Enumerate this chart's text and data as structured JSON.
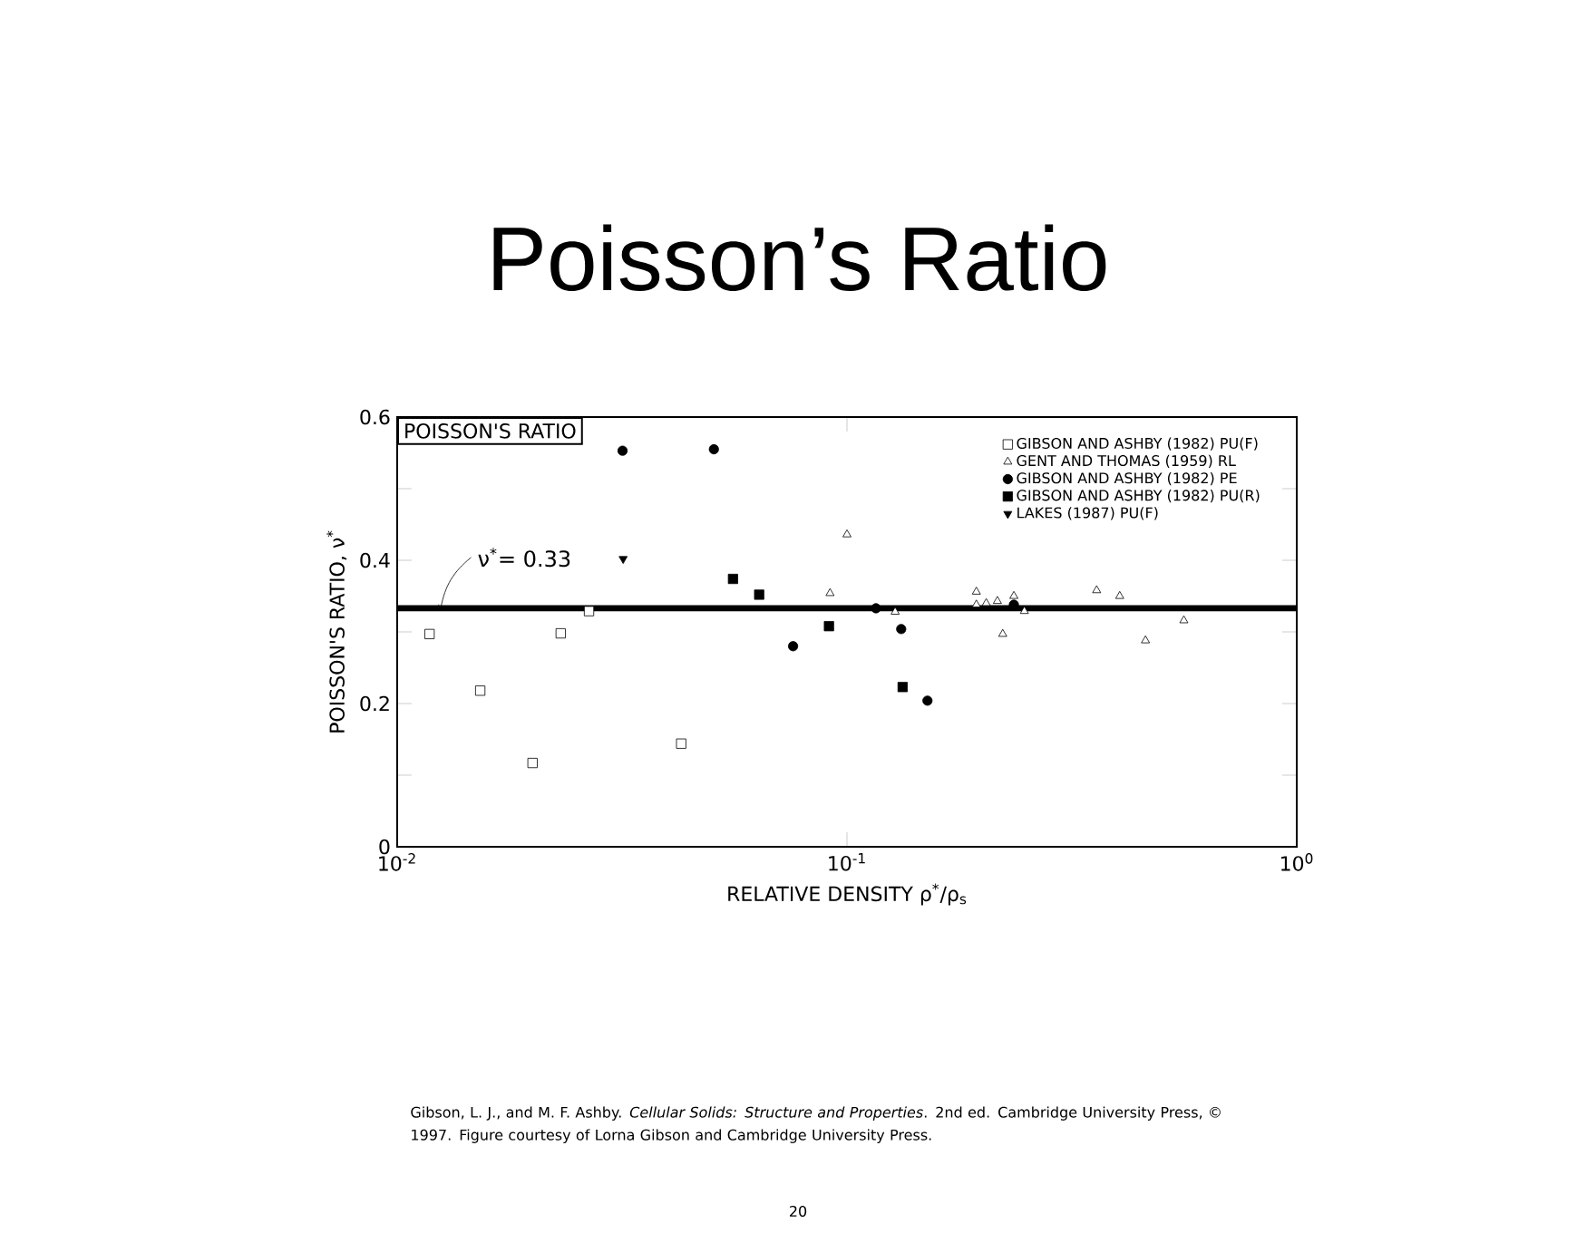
{
  "chart_data": {
    "type": "scatter",
    "title": "Poisson’s Ratio",
    "xlabel": "RELATIVE DENSITY ρ$^{*}$/ρ$_{s}$",
    "ylabel": "POISSON'S RATIO, ν$^{*}$",
    "log": "x",
    "xlim": [
      0.01,
      1
    ],
    "ylim": [
      0,
      0.6
    ],
    "xticks": [
      {
        "value": 0.01,
        "label": "10$^{-2}$"
      },
      {
        "value": 0.1,
        "label": "10$^{-1}$"
      },
      {
        "value": 1,
        "label": "10$^{0}$"
      }
    ],
    "yticks": [
      0,
      {
        "value": 0.1,
        "label": null
      },
      0.2,
      {
        "value": 0.3,
        "label": null
      },
      0.4,
      {
        "value": 0.5,
        "label": null
      },
      0.6
    ],
    "legend": "top right",
    "series": [
      {
        "name": "GIBSON AND ASHBY (1982) PU(F)",
        "color": "#000000",
        "marker": "square open",
        "x": [
          0.0118,
          0.0153,
          0.02,
          0.0231,
          0.0267,
          0.0428
        ],
        "values": [
          0.297,
          0.218,
          0.117,
          0.298,
          0.329,
          0.144
        ]
      },
      {
        "name": "GENT AND THOMAS (1959) RL",
        "color": "#000000",
        "marker": "triangle open",
        "x": [
          0.0917,
          0.1,
          0.128,
          0.194,
          0.194,
          0.204,
          0.216,
          0.222,
          0.235,
          0.248,
          0.359,
          0.404,
          0.461,
          0.561
        ],
        "values": [
          0.354,
          0.436,
          0.328,
          0.356,
          0.338,
          0.34,
          0.343,
          0.297,
          0.35,
          0.329,
          0.358,
          0.35,
          0.288,
          0.316
        ]
      },
      {
        "name": "GIBSON AND ASHBY (1982) PE",
        "color": "#000000",
        "marker": "circle",
        "x": [
          0.0317,
          0.0506,
          0.0759,
          0.116,
          0.132,
          0.151,
          0.235
        ],
        "values": [
          0.553,
          0.555,
          0.28,
          0.333,
          0.304,
          0.204,
          0.338
        ]
      },
      {
        "name": "GIBSON AND ASHBY (1982) PU(R)",
        "color": "#000000",
        "marker": "square",
        "x": [
          0.0558,
          0.0638,
          0.0912,
          0.133
        ],
        "values": [
          0.374,
          0.352,
          0.308,
          0.223
        ]
      },
      {
        "name": "LAKES (1987) PU(F)",
        "color": "#000000",
        "marker": "triangle down",
        "x": [
          0.0318
        ],
        "values": [
          0.402
        ]
      }
    ],
    "ref_lines": [
      {
        "axis": "y",
        "value": 0.333,
        "label": "ν$^{*}$= 0.33",
        "color": "#000000"
      }
    ],
    "annotations": [
      "POISSON'S RATIO",
      "Gibson, L. J., and M. F. Ashby. *Cellular Solids: Structure and Properties*. 2nd ed. Cambridge University Press, © 1997. Figure courtesy of Lorna Gibson and Cambridge University Press.",
      "20"
    ]
  }
}
